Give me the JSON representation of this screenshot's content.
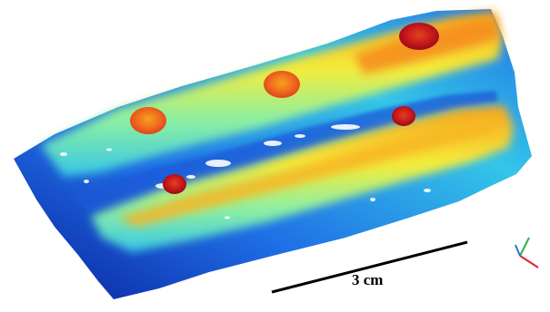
{
  "scale_bar": {
    "label": "3 cm",
    "color": "#000000"
  },
  "point_cloud": {
    "colormap": [
      "#0a1f9e",
      "#1f6fe6",
      "#34c6e8",
      "#8ef0a0",
      "#f4ec3a",
      "#f7a21c",
      "#e0441c",
      "#b4101c"
    ],
    "features": [
      "scan-surface",
      "upper-ridge",
      "lower-ridge",
      "bump-upper-left",
      "bump-upper-middle",
      "bump-upper-right",
      "bump-lower-left",
      "bump-lower-right"
    ]
  },
  "axis_triad": {
    "colors": {
      "x": "#e8202a",
      "y": "#2bb34a",
      "z": "#2f6fd9"
    }
  }
}
